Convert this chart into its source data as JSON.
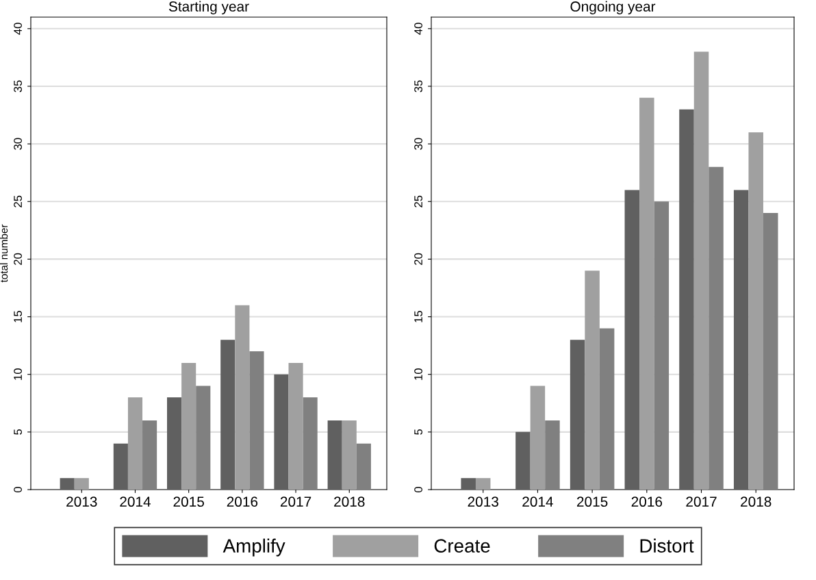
{
  "chart_data": [
    {
      "type": "bar",
      "title": "Starting year",
      "ylabel": "total number",
      "categories": [
        "2013",
        "2014",
        "2015",
        "2016",
        "2017",
        "2018"
      ],
      "series": [
        {
          "name": "Amplify",
          "color": "#606060",
          "values": [
            1,
            4,
            8,
            13,
            10,
            6
          ]
        },
        {
          "name": "Create",
          "color": "#a0a0a0",
          "values": [
            1,
            8,
            11,
            16,
            11,
            6
          ]
        },
        {
          "name": "Distort",
          "color": "#808080",
          "values": [
            0,
            6,
            9,
            12,
            8,
            4
          ]
        }
      ],
      "ylim": [
        0,
        41
      ],
      "yticks": [
        0,
        5,
        10,
        15,
        20,
        25,
        30,
        35,
        40
      ],
      "grid": "y",
      "legend": "bottom"
    },
    {
      "type": "bar",
      "title": "Ongoing year",
      "categories": [
        "2013",
        "2014",
        "2015",
        "2016",
        "2017",
        "2018"
      ],
      "series": [
        {
          "color": "#606060",
          "values": [
            1,
            5,
            13,
            26,
            33,
            26
          ]
        },
        {
          "color": "#a0a0a0",
          "values": [
            1,
            9,
            19,
            34,
            38,
            31
          ]
        },
        {
          "color": "#808080",
          "values": [
            0,
            6,
            14,
            25,
            28,
            24
          ]
        }
      ],
      "ylim": [
        0,
        41
      ],
      "yticks": [
        0,
        5,
        10,
        15,
        20,
        25,
        30,
        35,
        40
      ],
      "grid": "y"
    }
  ]
}
